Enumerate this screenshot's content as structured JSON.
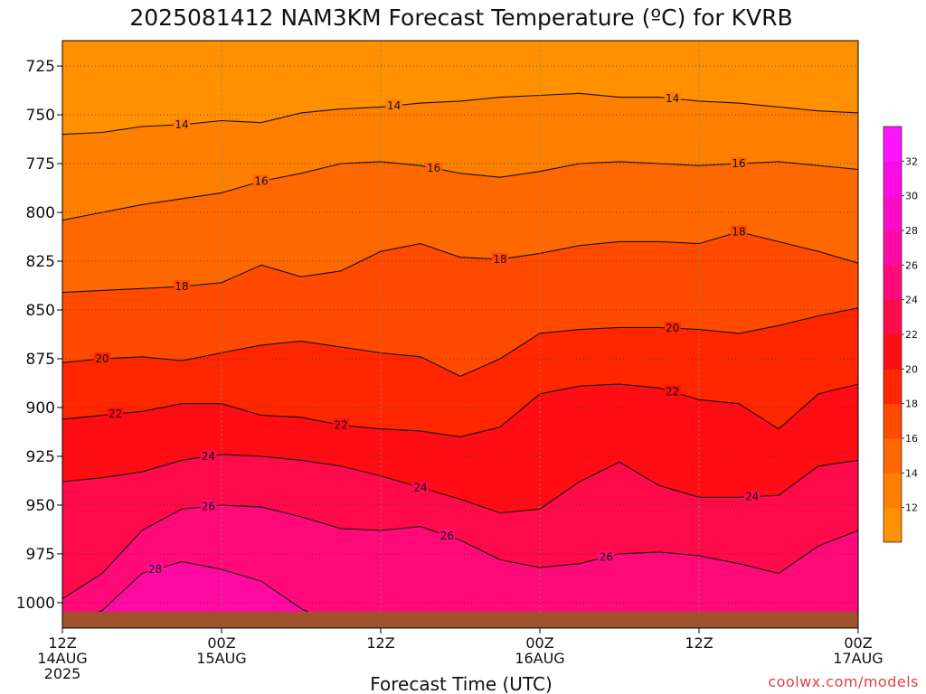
{
  "chart_data": {
    "type": "heatmap",
    "title": "2025081412 NAM3KM Forecast Temperature (ºC) for KVRB",
    "xlabel": "Forecast Time (UTC)",
    "ylabel": "",
    "credit": "coolwx.com/models",
    "yaxis": {
      "ticks": [
        725,
        750,
        775,
        800,
        825,
        850,
        875,
        900,
        925,
        950,
        975,
        1000
      ],
      "range": [
        712,
        1013
      ],
      "inverted": true
    },
    "xaxis": {
      "range_hours": [
        0,
        60
      ],
      "ticks": [
        {
          "hour": 0,
          "line1": "12Z",
          "line2": "14AUG",
          "line3": "2025"
        },
        {
          "hour": 12,
          "line1": "00Z",
          "line2": "15AUG",
          "line3": ""
        },
        {
          "hour": 24,
          "line1": "12Z",
          "line2": "",
          "line3": ""
        },
        {
          "hour": 36,
          "line1": "00Z",
          "line2": "16AUG",
          "line3": ""
        },
        {
          "hour": 48,
          "line1": "12Z",
          "line2": "",
          "line3": ""
        },
        {
          "hour": 60,
          "line1": "00Z",
          "line2": "17AUG",
          "line3": ""
        }
      ]
    },
    "grid": true,
    "colorbar": {
      "placement": "right",
      "levels": [
        10,
        12,
        14,
        16,
        18,
        20,
        22,
        24,
        26,
        28,
        30,
        32,
        34
      ],
      "labels": [
        "12",
        "14",
        "16",
        "18",
        "20",
        "22",
        "24",
        "26",
        "28",
        "30",
        "32"
      ],
      "colors": [
        "#ff9000",
        "#ff7f00",
        "#ff6800",
        "#ff4a00",
        "#ff2600",
        "#ff0c14",
        "#ff0a4a",
        "#ff0a78",
        "#ff0aa2",
        "#ff0ac8",
        "#ff0ae6",
        "#ff14ff"
      ]
    },
    "contours": [
      {
        "level": 14,
        "label": "14",
        "pressure": [
          760,
          759,
          756,
          755,
          753,
          754,
          749,
          747,
          746,
          744,
          743,
          741,
          740,
          739,
          741,
          741,
          743,
          744,
          746,
          748,
          749
        ],
        "label_hours": [
          9,
          25,
          46
        ]
      },
      {
        "level": 16,
        "label": "16",
        "pressure": [
          804,
          800,
          796,
          793,
          790,
          784,
          780,
          775,
          774,
          776,
          780,
          782,
          779,
          775,
          774,
          775,
          776,
          775,
          774,
          776,
          778
        ],
        "label_hours": [
          15,
          28,
          51
        ]
      },
      {
        "level": 18,
        "label": "18",
        "pressure": [
          841,
          840,
          839,
          838,
          836,
          827,
          833,
          830,
          820,
          816,
          823,
          824,
          821,
          817,
          815,
          815,
          816,
          810,
          815,
          820,
          826
        ],
        "label_hours": [
          9,
          33,
          51
        ]
      },
      {
        "level": 20,
        "label": "20",
        "pressure": [
          877,
          875,
          874,
          876,
          872,
          868,
          866,
          869,
          872,
          874,
          884,
          875,
          862,
          860,
          859,
          859,
          860,
          862,
          858,
          853,
          849
        ],
        "label_hours": [
          3,
          46
        ]
      },
      {
        "level": 22,
        "label": "22",
        "pressure": [
          906,
          904,
          902,
          898,
          898,
          904,
          905,
          909,
          911,
          912,
          915,
          910,
          893,
          889,
          888,
          890,
          896,
          898,
          911,
          893,
          888
        ],
        "label_hours": [
          4,
          21,
          46
        ]
      },
      {
        "level": 24,
        "label": "24",
        "pressure": [
          938,
          936,
          933,
          927,
          924,
          925,
          927,
          930,
          935,
          941,
          947,
          954,
          952,
          938,
          928,
          940,
          946,
          946,
          945,
          930,
          927
        ],
        "label_hours": [
          11,
          27,
          52
        ]
      },
      {
        "level": 26,
        "label": "26",
        "pressure": [
          998,
          985,
          963,
          952,
          950,
          951,
          956,
          962,
          963,
          961,
          968,
          978,
          982,
          980,
          975,
          974,
          976,
          980,
          985,
          971,
          963
        ],
        "label_hours": [
          11,
          29,
          41
        ]
      },
      {
        "level": 28,
        "label": "28",
        "pressure": [
          1013,
          1004,
          985,
          979,
          983,
          989,
          1003,
          1013,
          1013,
          1013,
          1013,
          1013,
          1013,
          1013,
          1013,
          1013,
          1013,
          1013,
          1013,
          1013,
          1013
        ],
        "label_hours": [
          7
        ]
      }
    ]
  }
}
